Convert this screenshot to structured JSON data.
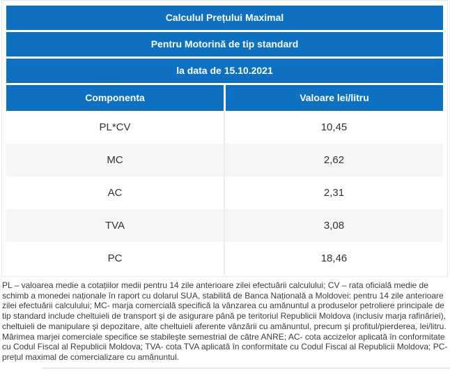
{
  "colors": {
    "header_blue": "#0e70c1",
    "stripe": "#f5f5f5",
    "border": "#e7e7e7",
    "body_text": "#333333"
  },
  "table": {
    "title_rows": [
      "Calculul Prețului Maximal",
      "Pentru Motorină de tip standard",
      "la data de 15.10.2021"
    ],
    "columns": [
      "Componenta",
      "Valoare lei/litru"
    ],
    "rows": [
      {
        "component": "PL*CV",
        "value": "10,45"
      },
      {
        "component": "MC",
        "value": "2,62"
      },
      {
        "component": "AC",
        "value": "2,31"
      },
      {
        "component": "TVA",
        "value": "3,08"
      },
      {
        "component": "PC",
        "value": "18,46"
      }
    ]
  },
  "footnote": "PL – valoarea medie a cotațiilor medii pentru 14 zile anterioare zilei efectuării calculului; CV – rata oficială medie de schimb a monedei naționale în raport cu dolarul SUA, stabilită de Banca Națională a Moldovei: pentru 14 zile anterioare zilei efectuării calculului; MC- marja comercială specifică la vânzarea cu amănuntul a produselor petroliere principale de tip standard include cheltuieli de transport şi de asigurare până pe teritoriul Republicii Moldova (inclusiv marja rafinăriei), cheltuieli de manipulare şi depozitare, alte cheltuieli aferente vânzării cu amănuntul, precum şi profitul/pierderea, lei/litru. Mărimea marjei comerciale specifice se stabileşte semestrial de către ANRE; AC- cota accizelor aplicată în conformitate cu Codul Fiscal al Republicii Moldova; TVA- cota TVA aplicată în conformitate cu Codul Fiscal al Republicii Moldova; PC- prețul maximal de comercializare cu amănuntul."
}
